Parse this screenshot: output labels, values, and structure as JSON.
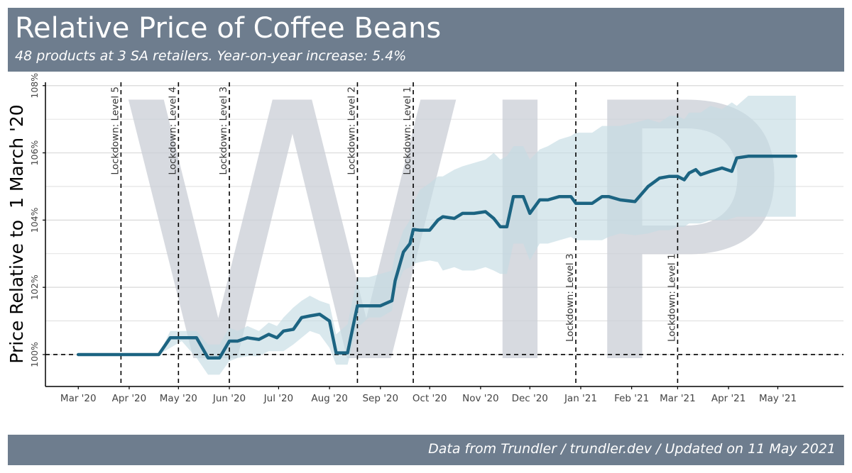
{
  "header": {
    "title": "Relative Price of Coffee Beans",
    "subtitle": "48 products at 3 SA retailers. Year-on-year increase: 5.4%"
  },
  "footer": {
    "caption": "Data from Trundler / trundler.dev / Updated on 11 May 2021"
  },
  "watermark": "WIP",
  "colors": {
    "header_bg": "#6e7d8e",
    "line": "#1c6482",
    "band": "#c5dce4",
    "watermark": "#c9ced6",
    "grid": "#d9d9d9"
  },
  "chart_data": {
    "type": "line",
    "title": "Relative Price of Coffee Beans",
    "subtitle": "48 products at 3 SA retailers. Year-on-year increase: 5.4%",
    "xlabel": "",
    "ylabel": "Price Relative to  1 March '20",
    "xlim": [
      "2020-02-10",
      "2021-06-10"
    ],
    "ylim": [
      99.05,
      108.1
    ],
    "yticks": [
      100,
      102,
      104,
      106,
      108
    ],
    "ytick_labels": [
      "100%",
      "102%",
      "104%",
      "106%",
      "108%"
    ],
    "xticks": [
      "2020-03-01",
      "2020-04-01",
      "2020-05-01",
      "2020-06-01",
      "2020-07-01",
      "2020-08-01",
      "2020-09-01",
      "2020-10-01",
      "2020-11-01",
      "2020-12-01",
      "2021-01-01",
      "2021-02-01",
      "2021-03-01",
      "2021-04-01",
      "2021-05-01"
    ],
    "xtick_labels": [
      "Mar '20",
      "Apr '20",
      "May '20",
      "Jun '20",
      "Jul '20",
      "Aug '20",
      "Sep '20",
      "Oct '20",
      "Nov '20",
      "Dec '20",
      "Jan '21",
      "Feb '21",
      "Mar '21",
      "Apr '21",
      "May '21"
    ],
    "grid": true,
    "reference_line": {
      "y": 100,
      "style": "dashed"
    },
    "events": [
      {
        "date": "2020-03-27",
        "label": "Lockdown: Level 5",
        "label_position": "top"
      },
      {
        "date": "2020-05-01",
        "label": "Lockdown: Level 4",
        "label_position": "top"
      },
      {
        "date": "2020-06-01",
        "label": "Lockdown: Level 3",
        "label_position": "top"
      },
      {
        "date": "2020-08-18",
        "label": "Lockdown: Level 2",
        "label_position": "top"
      },
      {
        "date": "2020-09-21",
        "label": "Lockdown: Level 1",
        "label_position": "top"
      },
      {
        "date": "2020-12-29",
        "label": "Lockdown: Level 3",
        "label_position": "bottom"
      },
      {
        "date": "2021-03-01",
        "label": "Lockdown: Level 1",
        "label_position": "bottom"
      }
    ],
    "series": [
      {
        "x": [
          "2020-03-01",
          "2020-03-15",
          "2020-03-29",
          "2020-04-19",
          "2020-04-26",
          "2020-05-03",
          "2020-05-12",
          "2020-05-19",
          "2020-05-26",
          "2020-06-01",
          "2020-06-06",
          "2020-06-12",
          "2020-06-19",
          "2020-06-25",
          "2020-06-30",
          "2020-07-04",
          "2020-07-10",
          "2020-07-15",
          "2020-07-20",
          "2020-07-26",
          "2020-08-01",
          "2020-08-05",
          "2020-08-12",
          "2020-08-18",
          "2020-08-25",
          "2020-09-01",
          "2020-09-08",
          "2020-09-10",
          "2020-09-15",
          "2020-09-19",
          "2020-09-21",
          "2020-09-25",
          "2020-10-01",
          "2020-10-06",
          "2020-10-09",
          "2020-10-16",
          "2020-10-21",
          "2020-10-28",
          "2020-11-04",
          "2020-11-09",
          "2020-11-13",
          "2020-11-17",
          "2020-11-21",
          "2020-11-27",
          "2020-12-01",
          "2020-12-07",
          "2020-12-12",
          "2020-12-19",
          "2020-12-26",
          "2020-12-29",
          "2021-01-03",
          "2021-01-08",
          "2021-01-14",
          "2021-01-18",
          "2021-01-25",
          "2021-02-03",
          "2021-02-11",
          "2021-02-18",
          "2021-02-24",
          "2021-03-01",
          "2021-03-05",
          "2021-03-08",
          "2021-03-12",
          "2021-03-15",
          "2021-03-21",
          "2021-03-28",
          "2021-03-31",
          "2021-04-03",
          "2021-04-06",
          "2021-04-13",
          "2021-04-21",
          "2021-04-26",
          "2021-05-04",
          "2021-05-08",
          "2021-05-12"
        ],
        "values": [
          100.0,
          100.0,
          100.0,
          100.0,
          100.5,
          100.5,
          100.5,
          99.9,
          99.9,
          100.4,
          100.4,
          100.5,
          100.45,
          100.6,
          100.5,
          100.7,
          100.75,
          101.1,
          101.15,
          101.2,
          101.0,
          100.05,
          100.05,
          101.45,
          101.45,
          101.45,
          101.6,
          102.2,
          103.05,
          103.3,
          103.72,
          103.7,
          103.7,
          104.0,
          104.1,
          104.05,
          104.2,
          104.2,
          104.25,
          104.05,
          103.8,
          103.8,
          104.7,
          104.7,
          104.2,
          104.6,
          104.6,
          104.7,
          104.7,
          104.5,
          104.5,
          104.5,
          104.7,
          104.7,
          104.6,
          104.55,
          105.0,
          105.25,
          105.3,
          105.3,
          105.2,
          105.4,
          105.5,
          105.35,
          105.45,
          105.55,
          105.5,
          105.45,
          105.85,
          105.9,
          105.9,
          105.9,
          105.9,
          105.9,
          105.9
        ],
        "lower": [
          100.0,
          100.0,
          100.0,
          100.0,
          100.2,
          100.4,
          99.9,
          99.4,
          99.4,
          99.8,
          99.9,
          99.95,
          99.95,
          100.1,
          100.1,
          100.1,
          100.3,
          100.5,
          100.7,
          100.6,
          100.2,
          99.7,
          99.7,
          100.8,
          101.1,
          101.1,
          101.3,
          101.9,
          102.5,
          102.6,
          102.7,
          102.75,
          102.8,
          102.75,
          102.5,
          102.6,
          102.5,
          102.5,
          102.6,
          102.5,
          102.4,
          102.4,
          103.3,
          103.3,
          102.8,
          103.3,
          103.3,
          103.4,
          103.5,
          103.4,
          103.4,
          103.4,
          103.4,
          103.5,
          103.6,
          103.55,
          103.6,
          103.7,
          103.7,
          103.8,
          103.8,
          103.9,
          103.9,
          103.9,
          104.0,
          104.0,
          104.0,
          104.05,
          104.1,
          104.1,
          104.1,
          104.1,
          104.1,
          104.1,
          104.1
        ],
        "upper": [
          100.0,
          100.0,
          100.0,
          100.0,
          100.7,
          100.7,
          100.7,
          100.3,
          100.3,
          100.8,
          100.7,
          100.85,
          100.7,
          100.95,
          100.85,
          101.1,
          101.4,
          101.6,
          101.75,
          101.6,
          101.5,
          100.6,
          100.9,
          102.3,
          102.3,
          102.4,
          102.5,
          103.0,
          103.7,
          104.0,
          104.5,
          104.9,
          105.1,
          105.3,
          105.3,
          105.5,
          105.6,
          105.7,
          105.8,
          106.0,
          105.8,
          105.9,
          106.2,
          106.2,
          105.8,
          106.1,
          106.2,
          106.4,
          106.5,
          106.6,
          106.6,
          106.6,
          106.8,
          106.8,
          106.8,
          106.9,
          107.0,
          106.9,
          107.1,
          107.1,
          107.0,
          107.2,
          107.2,
          107.2,
          107.4,
          107.3,
          107.4,
          107.5,
          107.4,
          107.7,
          107.7,
          107.7,
          107.7,
          107.7,
          107.7
        ]
      }
    ]
  }
}
